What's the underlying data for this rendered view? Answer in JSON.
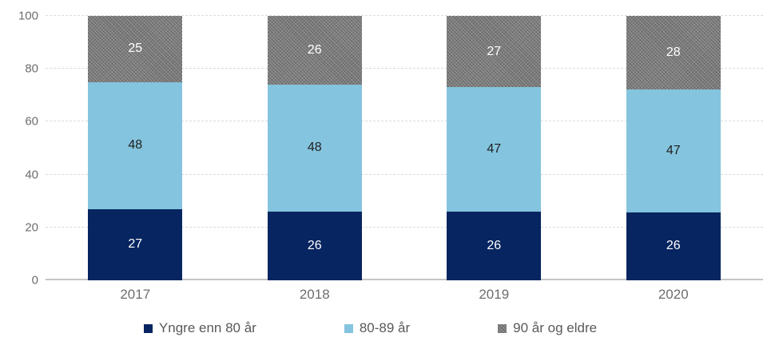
{
  "chart_data": {
    "type": "bar",
    "variant": "stacked-percent-column",
    "title": "",
    "xlabel": "",
    "ylabel": "",
    "categories": [
      "2017",
      "2018",
      "2019",
      "2020"
    ],
    "series": [
      {
        "name": "Yngre enn 80 år",
        "color": "#072560",
        "label_color": "#ffffff",
        "pattern": "solid",
        "values": [
          27,
          26,
          26,
          26
        ]
      },
      {
        "name": "80-89 år",
        "color": "#84c4de",
        "label_color": "#1f1f1f",
        "pattern": "solid",
        "values": [
          48,
          48,
          47,
          47
        ]
      },
      {
        "name": "90 år og eldre",
        "color": "#7a7a7a",
        "label_color": "#ffffff",
        "pattern": "crosshatch",
        "values": [
          25,
          26,
          27,
          28
        ]
      }
    ],
    "ylim": [
      0,
      100
    ],
    "yticks": [
      0,
      20,
      40,
      60,
      80,
      100
    ],
    "grid": true,
    "legend_position": "bottom"
  },
  "colors": {
    "background": "#ffffff",
    "gridline": "#dadada",
    "baseline": "#c6c6c6",
    "axis_text": "#6d6d6d",
    "legend_text": "#595959"
  }
}
